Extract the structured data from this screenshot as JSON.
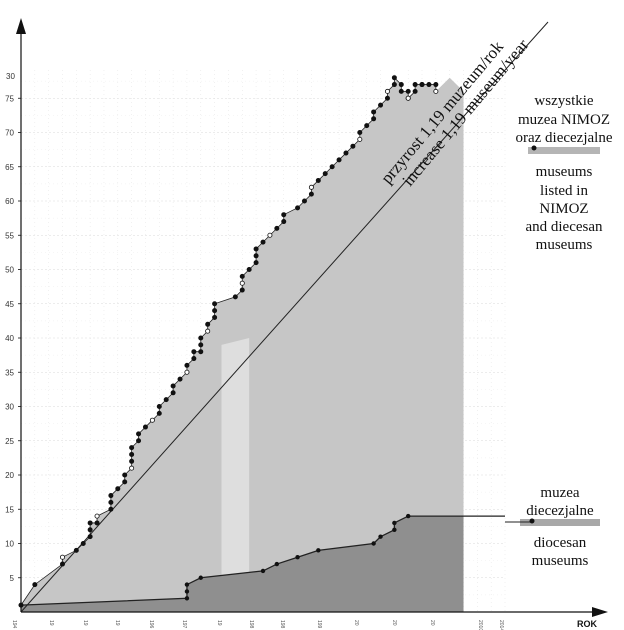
{
  "chart_data": {
    "type": "area",
    "xlabel": "ROK",
    "ylabel": "",
    "xlim": [
      1945,
      2015
    ],
    "ylim": [
      0,
      80
    ],
    "y_ticks": [
      5,
      10,
      15,
      20,
      25,
      30,
      35,
      40,
      45,
      50,
      55,
      60,
      65,
      70,
      75
    ],
    "top_tick_label": "30",
    "x_tick_labels": [
      "194",
      "19",
      "19",
      "19",
      "196",
      "197",
      "19",
      "198",
      "198",
      "199",
      "20",
      "20",
      "20",
      "2010",
      "2014"
    ],
    "grid": true,
    "series": [
      {
        "name": "wszystkie muzea NIMOZ oraz diecezjalne / museums listed in NIMOZ and diecesan museums",
        "x": [
          1945,
          1947,
          1951,
          1951,
          1953,
          1954,
          1955,
          1955,
          1955,
          1956,
          1956,
          1958,
          1958,
          1958,
          1959,
          1960,
          1960,
          1961,
          1961,
          1961,
          1961,
          1962,
          1962,
          1963,
          1964,
          1965,
          1965,
          1966,
          1967,
          1967,
          1968,
          1969,
          1969,
          1970,
          1970,
          1971,
          1971,
          1971,
          1972,
          1972,
          1973,
          1973,
          1973,
          1976,
          1977,
          1977,
          1977,
          1978,
          1979,
          1979,
          1979,
          1980,
          1981,
          1982,
          1983,
          1983,
          1985,
          1986,
          1987,
          1987,
          1988,
          1989,
          1990,
          1991,
          1992,
          1993,
          1994,
          1994,
          1995,
          1996,
          1996,
          1997,
          1998,
          1998,
          1999,
          1999,
          2000,
          2000,
          2001,
          2001,
          2001,
          2002,
          2002,
          2003,
          2003,
          2004,
          2005,
          2005
        ],
        "y": [
          1,
          4,
          7,
          8,
          9,
          10,
          11,
          12,
          13,
          13,
          14,
          15,
          16,
          17,
          18,
          19,
          20,
          21,
          22,
          23,
          24,
          25,
          26,
          27,
          28,
          29,
          30,
          31,
          32,
          33,
          34,
          35,
          36,
          37,
          38,
          38,
          39,
          40,
          41,
          42,
          43,
          44,
          45,
          46,
          47,
          48,
          49,
          50,
          51,
          52,
          53,
          54,
          55,
          56,
          57,
          58,
          59,
          60,
          61,
          62,
          63,
          64,
          65,
          66,
          67,
          68,
          69,
          70,
          71,
          72,
          73,
          74,
          75,
          76,
          77,
          78,
          77,
          76,
          76,
          75,
          75,
          76,
          77,
          77,
          77,
          77,
          77,
          76
        ]
      },
      {
        "name": "muzea diecezjalne / diocesan museums",
        "x": [
          1945,
          1969,
          1969,
          1969,
          1971,
          1980,
          1982,
          1985,
          1988,
          1996,
          1997,
          1999,
          1999,
          2001
        ],
        "y": [
          1,
          2,
          3,
          4,
          5,
          6,
          7,
          8,
          9,
          10,
          11,
          12,
          13,
          14
        ]
      }
    ],
    "annotations": {
      "trend_pl": "przyrost 1,19 muzeum/rok",
      "trend_en": "increase 1,19 museum/year"
    },
    "legend": {
      "all_pl": [
        "wszystkie",
        "muzea NIMOZ",
        "oraz diecezjalne"
      ],
      "all_en": [
        "museums",
        "listed in",
        "NIMOZ",
        "and diecesan",
        "museums"
      ],
      "dioc_pl": [
        "muzea",
        "diecezjalne"
      ],
      "dioc_en": [
        "diocesan",
        "museums"
      ]
    },
    "colors": {
      "area_main": "#c6c6c6",
      "area_light": "#dedede",
      "area_dark": "#8f8f8f",
      "line": "#222222",
      "legend_bar": "#b5b5b5"
    }
  }
}
